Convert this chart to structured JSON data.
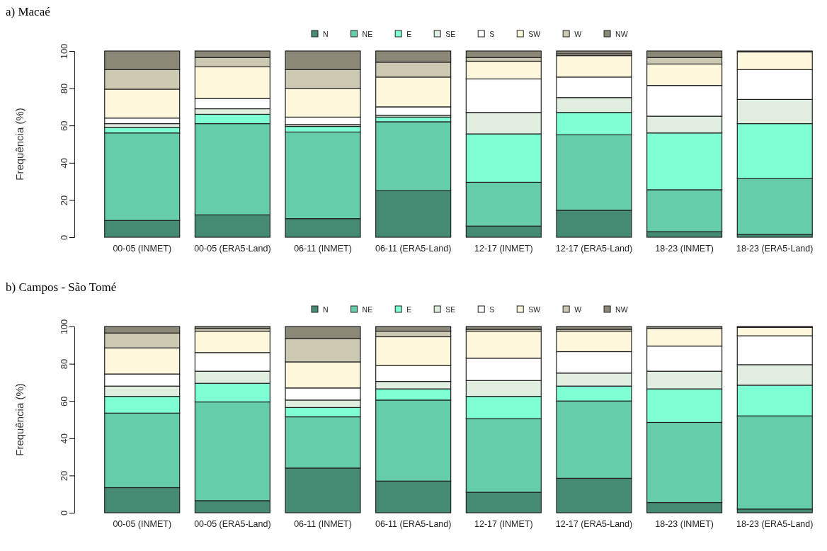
{
  "chart_data": [
    {
      "type": "bar",
      "title": "a) Macaé",
      "ylabel": "Frequência (%)",
      "stacked": true,
      "legend": "top",
      "grid": false,
      "ylim": [
        0,
        100
      ],
      "yticks": [
        0,
        20,
        40,
        60,
        80,
        100
      ],
      "categories": [
        "00-05 (INMET)",
        "00-05 (ERA5-Land)",
        "06-11 (INMET)",
        "06-11 (ERA5-Land)",
        "12-17 (INMET)",
        "12-17 (ERA5-Land)",
        "18-23 (INMET)",
        "18-23 (ERA5-Land)"
      ],
      "series": [
        {
          "name": "N",
          "color": "#458b74",
          "values": [
            9,
            12,
            10,
            25,
            6,
            14.5,
            3,
            1.5
          ]
        },
        {
          "name": "NE",
          "color": "#66cdaa",
          "values": [
            47,
            49,
            46.5,
            37,
            23.5,
            40.5,
            22.5,
            30
          ]
        },
        {
          "name": "E",
          "color": "#7fffd4",
          "values": [
            3,
            5,
            3,
            2.5,
            26,
            12,
            30.5,
            29.5
          ]
        },
        {
          "name": "SE",
          "color": "#e0eee0",
          "values": [
            2,
            3,
            1,
            1,
            11.5,
            8,
            9,
            13
          ]
        },
        {
          "name": "S",
          "color": "#ffffff",
          "values": [
            3,
            5.5,
            4,
            4.5,
            18,
            11,
            16.5,
            16
          ]
        },
        {
          "name": "SW",
          "color": "#fff8dc",
          "values": [
            15.5,
            17,
            15.5,
            16,
            9.5,
            11.5,
            11.5,
            9.5
          ]
        },
        {
          "name": "W",
          "color": "#cdc8b1",
          "values": [
            10.5,
            5,
            10,
            8,
            2,
            1,
            3.5,
            null
          ]
        },
        {
          "name": "NW",
          "color": "#8b8878",
          "values": [
            10,
            3.5,
            10,
            6,
            3.5,
            1.5,
            3.5,
            0.5
          ]
        }
      ]
    },
    {
      "type": "bar",
      "title": "b) Campos - São Tomé",
      "ylabel": "Frequência (%)",
      "stacked": true,
      "legend": "top",
      "grid": false,
      "ylim": [
        0,
        100
      ],
      "yticks": [
        0,
        20,
        40,
        60,
        80,
        100
      ],
      "categories": [
        "00-05 (INMET)",
        "00-05 (ERA5-Land)",
        "06-11 (INMET)",
        "06-11 (ERA5-Land)",
        "12-17 (INMET)",
        "12-17 (ERA5-Land)",
        "18-23 (INMET)",
        "18-23 (ERA5-Land)"
      ],
      "series": [
        {
          "name": "N",
          "color": "#458b74",
          "values": [
            13.5,
            6.5,
            24,
            17,
            11,
            18.5,
            5.5,
            2
          ]
        },
        {
          "name": "NE",
          "color": "#66cdaa",
          "values": [
            40,
            53,
            27.5,
            43.5,
            39.5,
            41.5,
            43,
            50
          ]
        },
        {
          "name": "E",
          "color": "#7fffd4",
          "values": [
            9,
            10,
            5,
            6,
            12,
            8,
            18,
            16.5
          ]
        },
        {
          "name": "SE",
          "color": "#e0eee0",
          "values": [
            5.5,
            6.5,
            4,
            4,
            8.5,
            7,
            9.5,
            11
          ]
        },
        {
          "name": "S",
          "color": "#ffffff",
          "values": [
            6.5,
            10,
            6.5,
            8.5,
            12,
            11.5,
            13.5,
            15.5
          ]
        },
        {
          "name": "SW",
          "color": "#fff8dc",
          "values": [
            14,
            11.5,
            14,
            15.5,
            14.5,
            11,
            9.5,
            4.5
          ]
        },
        {
          "name": "W",
          "color": "#cdc8b1",
          "values": [
            8,
            1.5,
            12.5,
            3,
            1,
            1,
            null,
            null
          ]
        },
        {
          "name": "NW",
          "color": "#8b8878",
          "values": [
            3.5,
            1,
            6.5,
            2.5,
            1.5,
            1.5,
            1,
            0.5
          ]
        }
      ]
    }
  ]
}
